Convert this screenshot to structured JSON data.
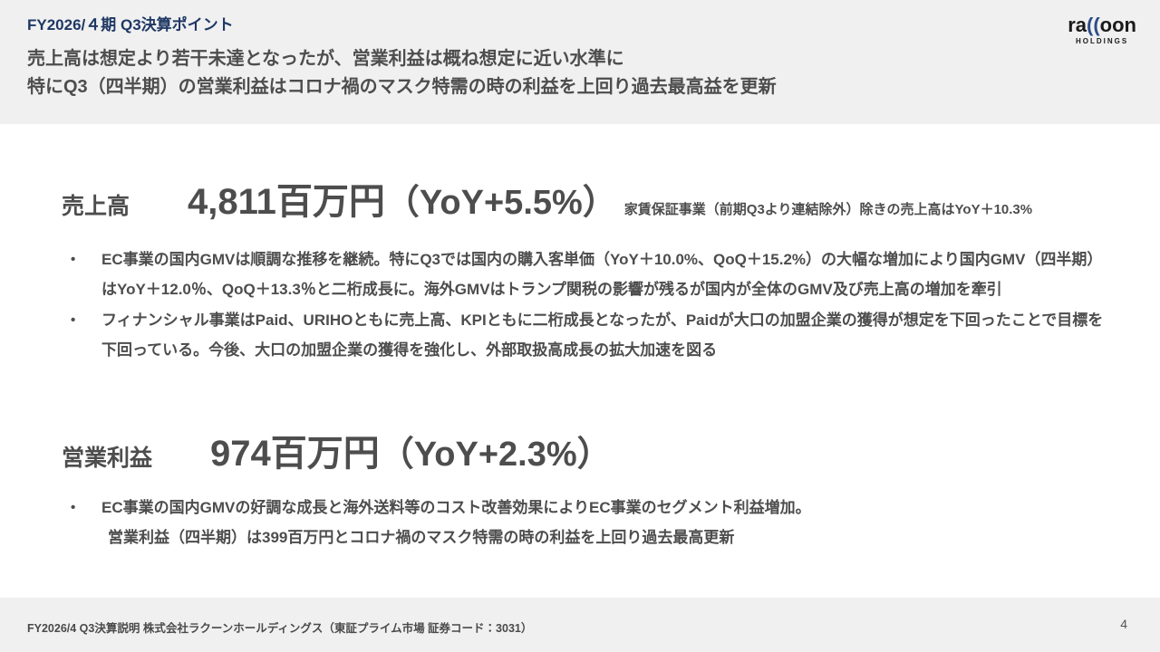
{
  "header": {
    "title": "FY2026/４期 Q3決算ポイント",
    "subtitle_line1": "売上高は想定より若干未達となったが、営業利益は概ね想定に近い水準に",
    "subtitle_line2": "特にQ3（四半期）の営業利益はコロナ禍のマスク特需の時の利益を上回り過去最高益を更新",
    "logo": {
      "part1": "ra",
      "part2": "((",
      "part3": "oon",
      "sub": "HOLDINGS"
    }
  },
  "bullet_marker": "•",
  "revenue": {
    "label": "売上高",
    "value": "4,811百万円",
    "yoy": "（YoY+5.5%）",
    "note": "家賃保証事業（前期Q3より連結除外）除きの売上高はYoY＋10.3%",
    "bullets": [
      "EC事業の国内GMVは順調な推移を継続。特にQ3では国内の購入客単価（YoY＋10.0%、QoQ＋15.2%）の大幅な増加により国内GMV（四半期）はYoY＋12.0％、QoQ＋13.3％と二桁成長に。海外GMVはトランプ関税の影響が残るが国内が全体のGMV及び売上高の増加を牽引",
      "フィナンシャル事業はPaid、URIHOともに売上高、KPIともに二桁成長となったが、Paidが大口の加盟企業の獲得が想定を下回ったことで目標を下回っている。今後、大口の加盟企業の獲得を強化し、外部取扱高成長の拡大加速を図る"
    ]
  },
  "profit": {
    "label": "営業利益",
    "value": "974百万円",
    "yoy": "（YoY+2.3%）",
    "bullet_line1": "EC事業の国内GMVの好調な成長と海外送料等のコスト改善効果によりEC事業のセグメント利益増加。",
    "bullet_line2": "営業利益（四半期）は399百万円とコロナ禍のマスク特需の時の利益を上回り過去最高更新"
  },
  "footer": {
    "text": "FY2026/4 Q3決算説明 株式会社ラクーンホールディングス（東証プライム市場 証券コード：3031）",
    "page_number": "4"
  },
  "colors": {
    "accent_navy": "#1f3864",
    "band_gray": "#f0f0f1",
    "text_gray": "#4d4d4d",
    "logo_blue": "#2b4d86"
  }
}
